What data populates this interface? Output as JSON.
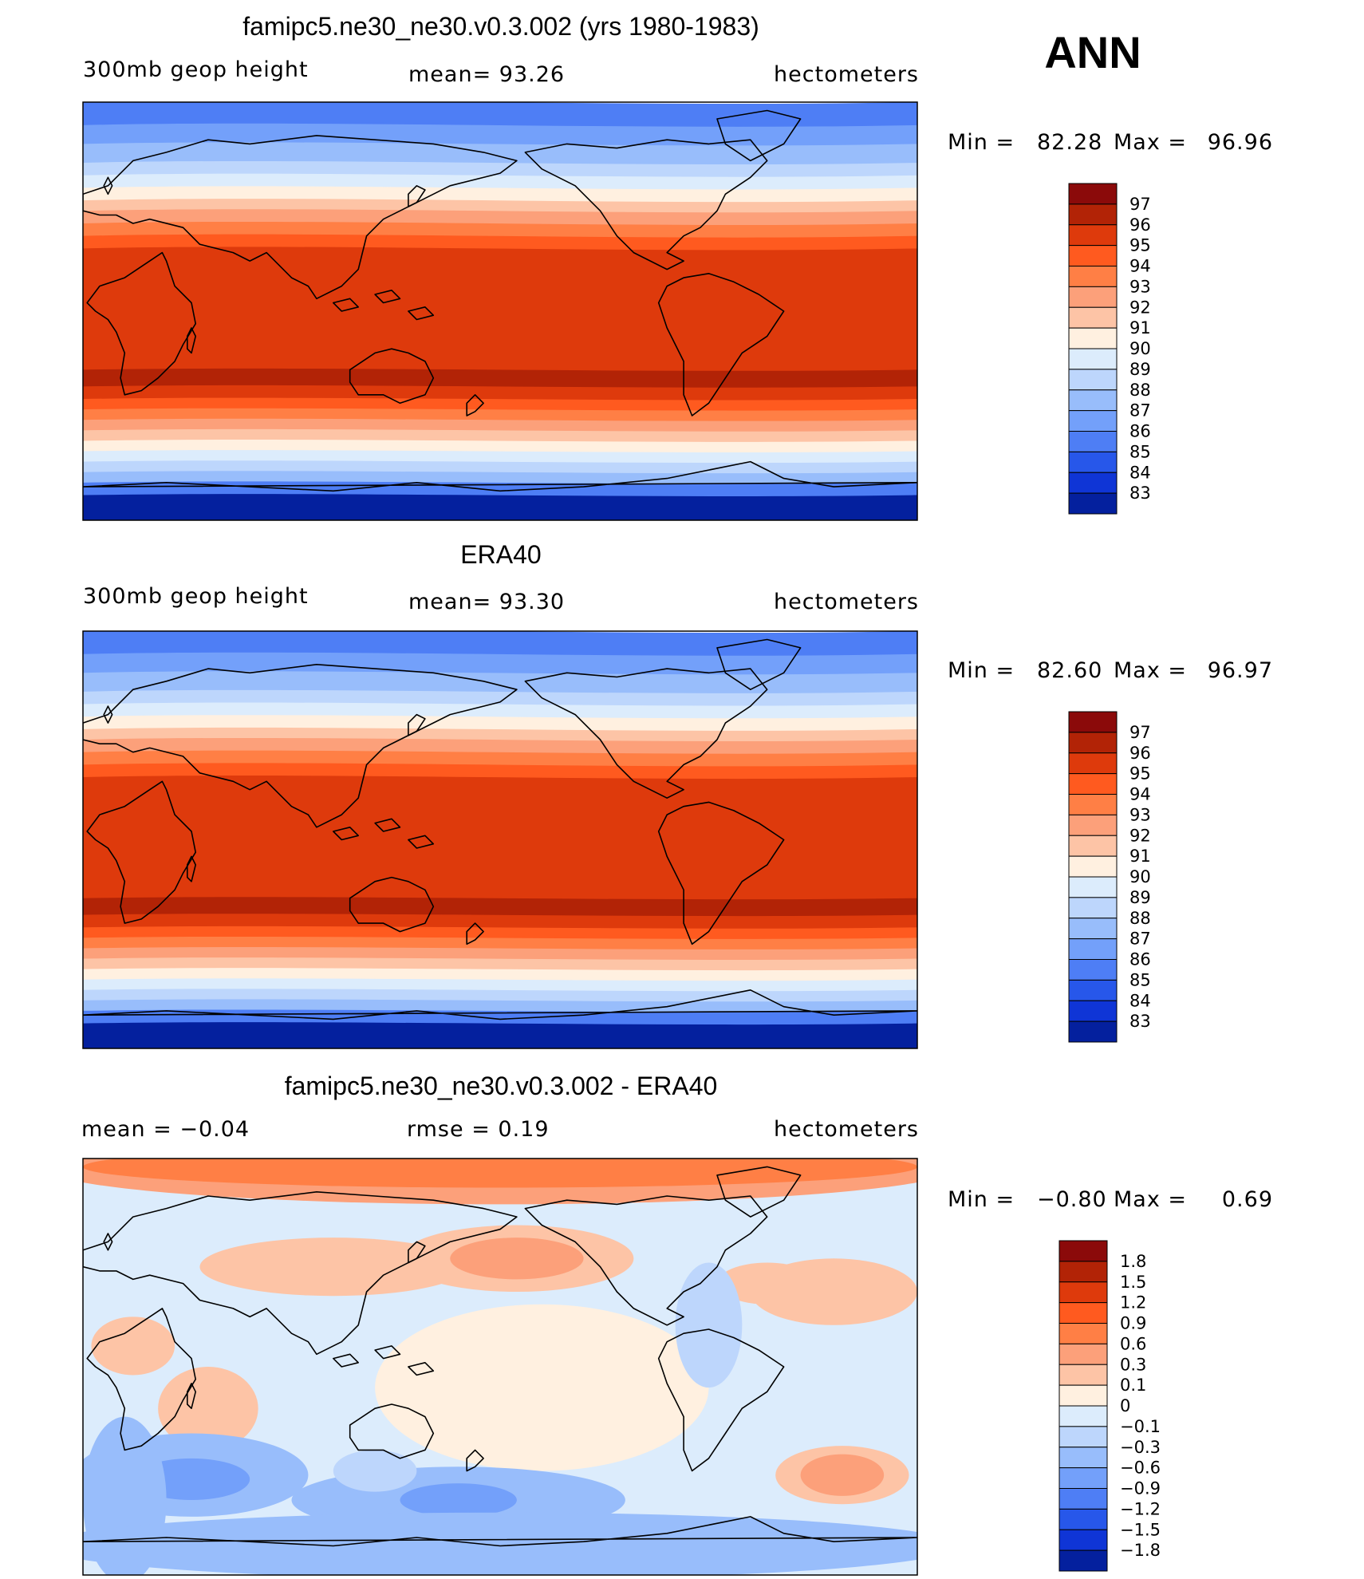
{
  "figure_label": "ANN",
  "chart_data": [
    {
      "type": "heatmap",
      "title": "famipc5.ne30_ne30.v0.3.002 (yrs 1980-1983)",
      "left_label": "300mb geop height",
      "center_label": "mean=  93.26",
      "right_label": "hectometers",
      "min_label": "Min =",
      "min_value": "82.28",
      "max_label": "Max =",
      "max_value": "96.96",
      "field": "abs",
      "colorbar": {
        "levels": [
          "97",
          "96",
          "95",
          "94",
          "93",
          "92",
          "91",
          "90",
          "89",
          "88",
          "87",
          "86",
          "85",
          "84",
          "83"
        ],
        "colors": [
          "#8b0a0a",
          "#b22306",
          "#de3a0c",
          "#ff5a1f",
          "#ff7f45",
          "#fca07a",
          "#fdc4a6",
          "#fff0e0",
          "#dcecfc",
          "#bdd6fc",
          "#98bdfb",
          "#73a0fa",
          "#4e7ef5",
          "#2757ea",
          "#0f35d6",
          "#04209e"
        ]
      }
    },
    {
      "type": "heatmap",
      "title": "ERA40",
      "left_label": "300mb geop height",
      "center_label": "mean=  93.30",
      "right_label": "hectometers",
      "min_label": "Min =",
      "min_value": "82.60",
      "max_label": "Max =",
      "max_value": "96.97",
      "field": "abs",
      "colorbar": {
        "levels": [
          "97",
          "96",
          "95",
          "94",
          "93",
          "92",
          "91",
          "90",
          "89",
          "88",
          "87",
          "86",
          "85",
          "84",
          "83"
        ],
        "colors": [
          "#8b0a0a",
          "#b22306",
          "#de3a0c",
          "#ff5a1f",
          "#ff7f45",
          "#fca07a",
          "#fdc4a6",
          "#fff0e0",
          "#dcecfc",
          "#bdd6fc",
          "#98bdfb",
          "#73a0fa",
          "#4e7ef5",
          "#2757ea",
          "#0f35d6",
          "#04209e"
        ]
      }
    },
    {
      "type": "heatmap",
      "title": "famipc5.ne30_ne30.v0.3.002 - ERA40",
      "left_label": "mean =   −0.04",
      "center_label": "rmse =    0.19",
      "right_label": "hectometers",
      "min_label": "Min =",
      "min_value": "−0.80",
      "max_label": "Max =",
      "max_value": "0.69",
      "field": "diff",
      "colorbar": {
        "levels": [
          "1.8",
          "1.5",
          "1.2",
          "0.9",
          "0.6",
          "0.3",
          "0.1",
          "0",
          "−0.1",
          "−0.3",
          "−0.6",
          "−0.9",
          "−1.2",
          "−1.5",
          "−1.8"
        ],
        "colors": [
          "#8b0a0a",
          "#b22306",
          "#de3a0c",
          "#ff5a1f",
          "#ff7f45",
          "#fca07a",
          "#fdc4a6",
          "#fff0e0",
          "#dcecfc",
          "#bdd6fc",
          "#98bdfb",
          "#73a0fa",
          "#4e7ef5",
          "#2757ea",
          "#0f35d6",
          "#04209e"
        ]
      }
    }
  ]
}
